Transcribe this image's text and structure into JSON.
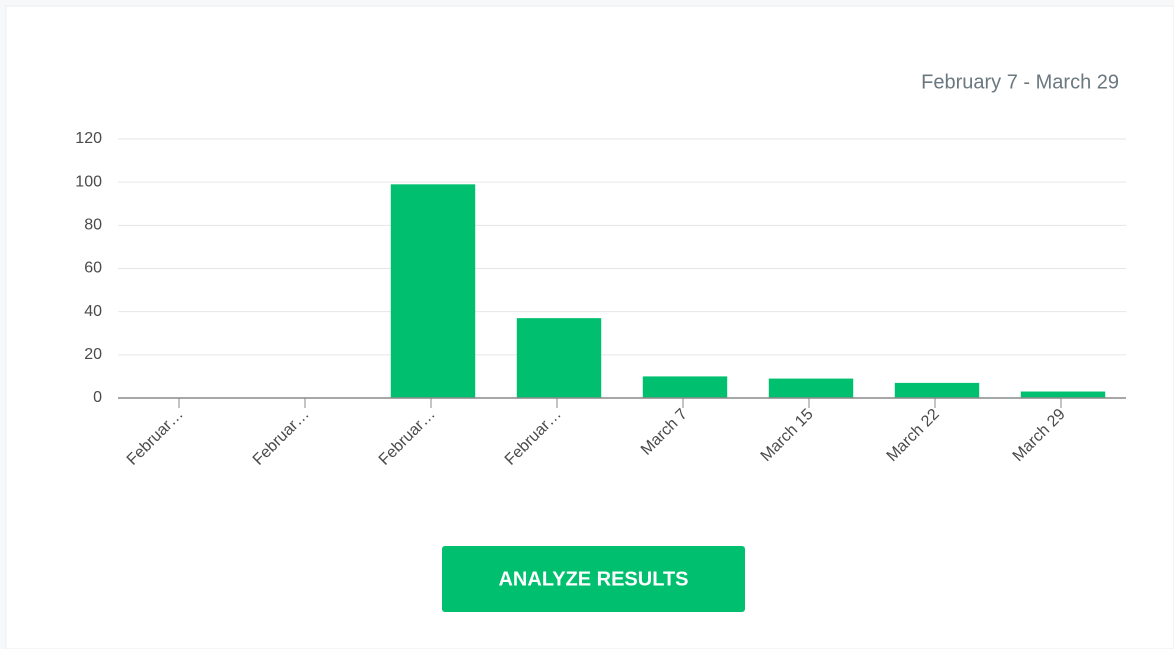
{
  "chart_data": {
    "type": "bar",
    "subtitle": "February 7 - March 29",
    "categories": [
      "Februar…",
      "Februar…",
      "Februar…",
      "Februar…",
      "March 7",
      "March 15",
      "March 22",
      "March 29"
    ],
    "values": [
      0,
      0,
      99,
      37,
      10,
      9,
      7,
      3
    ],
    "color": "#00bf6f",
    "ylim": [
      0,
      120
    ],
    "yticks": [
      0,
      20,
      40,
      60,
      80,
      100,
      120
    ],
    "grid": true
  },
  "button": "ANALYZE RESULTS"
}
